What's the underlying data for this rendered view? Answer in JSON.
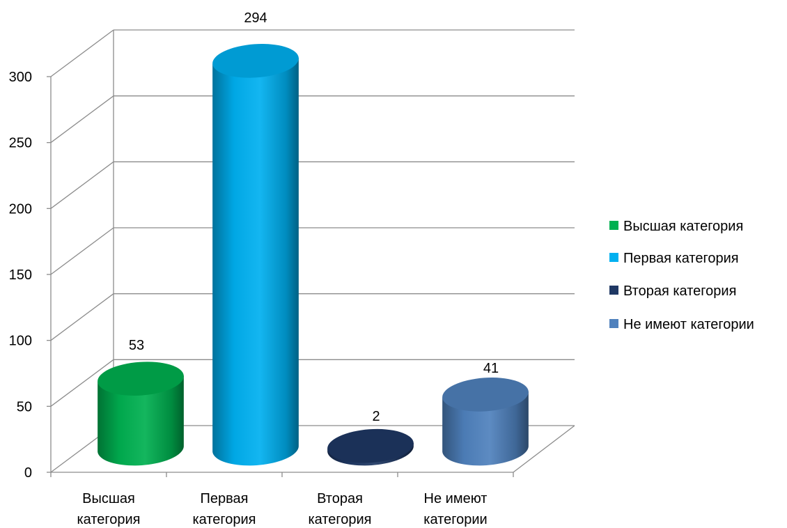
{
  "chart_data": {
    "type": "bar",
    "categories": [
      "Высшая категория",
      "Первая категория",
      "Вторая категория",
      "Не имеют категории"
    ],
    "category_labels": [
      [
        "Высшая",
        "категория"
      ],
      [
        "Первая",
        "категория"
      ],
      [
        "Вторая",
        "категория"
      ],
      [
        "Не имеют",
        "категории"
      ]
    ],
    "values": [
      53,
      294,
      2,
      41
    ],
    "data_labels": [
      "53",
      "294",
      "2",
      "41"
    ],
    "colors": [
      "#00b050",
      "#00b0f0",
      "#1f3864",
      "#4f81bd"
    ],
    "ylim": [
      0,
      300
    ],
    "yticks": [
      0,
      50,
      100,
      150,
      200,
      250,
      300
    ],
    "ytick_labels": [
      "0",
      "50",
      "100",
      "150",
      "200",
      "250",
      "300"
    ],
    "grid": true,
    "legend": {
      "position": "right",
      "entries": [
        "Высшая категория",
        "Первая категория",
        "Вторая категория",
        "Не имеют категории"
      ]
    },
    "style": "3d-cylinder",
    "title": "",
    "xlabel": "",
    "ylabel": ""
  }
}
